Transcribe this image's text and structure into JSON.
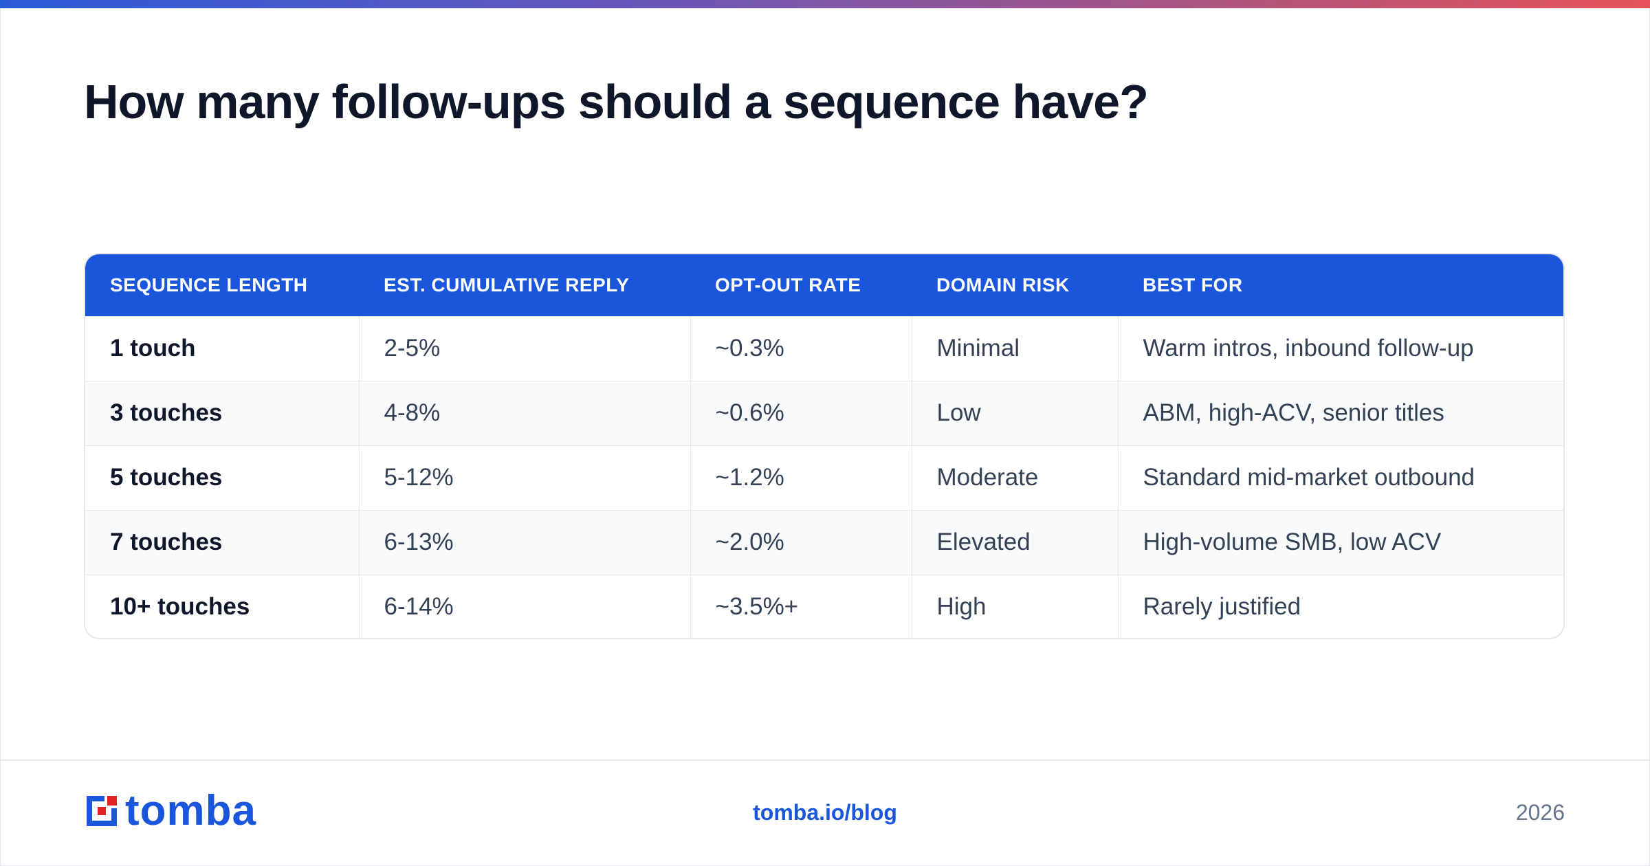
{
  "page": {
    "title": "How many follow-ups should a sequence have?"
  },
  "table": {
    "headers": [
      "SEQUENCE LENGTH",
      "EST. CUMULATIVE REPLY",
      "OPT-OUT RATE",
      "DOMAIN RISK",
      "BEST FOR"
    ],
    "rows": [
      [
        "1 touch",
        "2-5%",
        "~0.3%",
        "Minimal",
        "Warm intros, inbound follow-up"
      ],
      [
        "3 touches",
        "4-8%",
        "~0.6%",
        "Low",
        "ABM, high-ACV, senior titles"
      ],
      [
        "5 touches",
        "5-12%",
        "~1.2%",
        "Moderate",
        "Standard mid-market outbound"
      ],
      [
        "7 touches",
        "6-13%",
        "~2.0%",
        "Elevated",
        "High-volume SMB, low ACV"
      ],
      [
        "10+ touches",
        "6-14%",
        "~3.5%+",
        "High",
        "Rarely justified"
      ]
    ]
  },
  "footer": {
    "logo_text": "tomba",
    "logo_icon": "tomba-logo-icon",
    "link": "tomba.io/blog",
    "year": "2026"
  },
  "colors": {
    "accent": "#1a56db",
    "logo_red": "#e02424",
    "gradient_start": "#2a5bd7",
    "gradient_end": "#e6525a"
  }
}
